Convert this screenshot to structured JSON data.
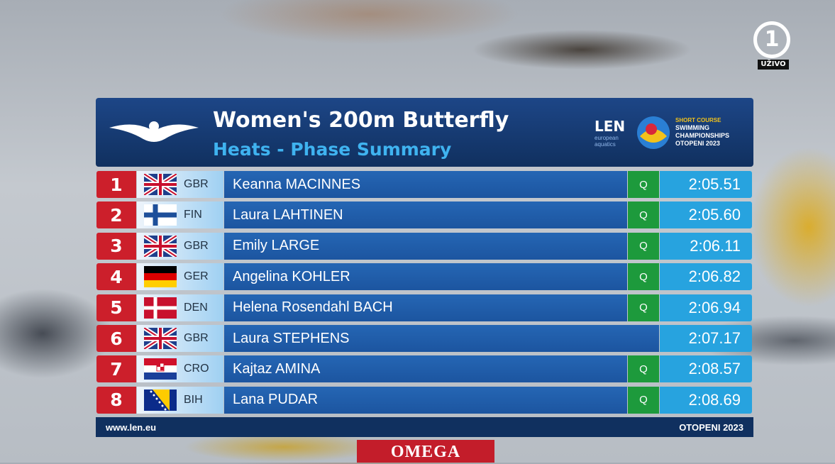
{
  "header": {
    "title": "Women's 200m Butterfly",
    "subtitle": "Heats - Phase Summary"
  },
  "logo": {
    "brand": "LEN",
    "brand_sub": "european aquatics",
    "event_line1": "SHORT COURSE",
    "event_line2": "SWIMMING",
    "event_line3": "CHAMPIONSHIPS",
    "event_line4": "OTOPENI 2023"
  },
  "channel": {
    "number": "1",
    "label": "UŽIVO"
  },
  "table": {
    "rows": [
      {
        "rank": 1,
        "country": "GBR",
        "name": "Keanna MACINNES",
        "q": "Q",
        "time": "2:05.51"
      },
      {
        "rank": 2,
        "country": "FIN",
        "name": "Laura LAHTINEN",
        "q": "Q",
        "time": "2:05.60"
      },
      {
        "rank": 3,
        "country": "GBR",
        "name": "Emily LARGE",
        "q": "Q",
        "time": "2:06.11"
      },
      {
        "rank": 4,
        "country": "GER",
        "name": "Angelina KOHLER",
        "q": "Q",
        "time": "2:06.82"
      },
      {
        "rank": 5,
        "country": "DEN",
        "name": "Helena Rosendahl BACH",
        "q": "Q",
        "time": "2:06.94"
      },
      {
        "rank": 6,
        "country": "GBR",
        "name": "Laura STEPHENS",
        "time": "2:07.17"
      },
      {
        "rank": 7,
        "country": "CRO",
        "name": "Kajtaz AMINA",
        "q": "Q",
        "time": "2:08.57"
      },
      {
        "rank": 8,
        "country": "BIH",
        "name": "Lana PUDAR",
        "q": "Q",
        "time": "2:08.69"
      }
    ]
  },
  "footer": {
    "left": "www.len.eu",
    "right": "OTOPENI 2023",
    "sponsor": "OMEGA"
  }
}
